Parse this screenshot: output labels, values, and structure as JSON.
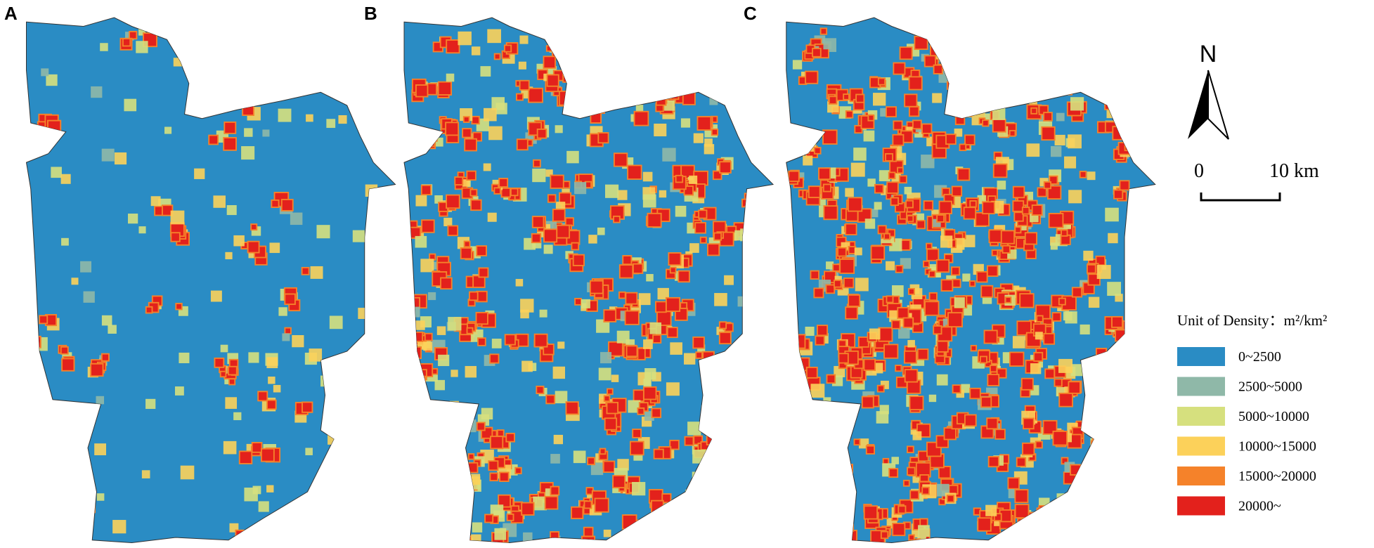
{
  "panels": [
    {
      "label": "A"
    },
    {
      "label": "B"
    },
    {
      "label": "C"
    }
  ],
  "north_arrow": {
    "label": "N"
  },
  "scale_bar": {
    "start": "0",
    "end": "10 km"
  },
  "legend": {
    "title": "Unit of Density：m²/km²",
    "items": [
      {
        "label": "0~2500",
        "color": "#2a8cc4"
      },
      {
        "label": "2500~5000",
        "color": "#8fb8a8"
      },
      {
        "label": "5000~10000",
        "color": "#d6e07e"
      },
      {
        "label": "10000~15000",
        "color": "#fcd15a"
      },
      {
        "label": "15000~20000",
        "color": "#f5822a"
      },
      {
        "label": "20000~",
        "color": "#e3211c"
      }
    ]
  }
}
